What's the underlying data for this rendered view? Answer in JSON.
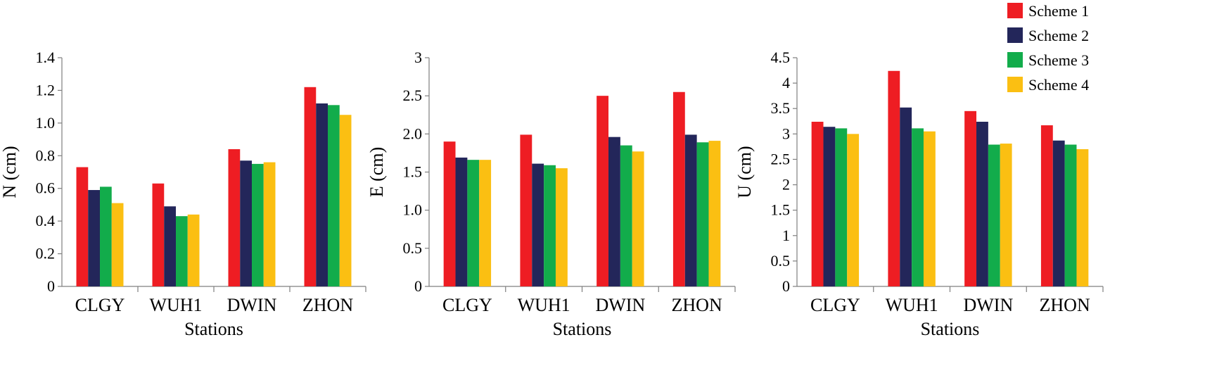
{
  "legend": {
    "items": [
      {
        "label": "Scheme 1",
        "color": "#ee1d23"
      },
      {
        "label": "Scheme 2",
        "color": "#23265a"
      },
      {
        "label": "Scheme 3",
        "color": "#12ac4b"
      },
      {
        "label": "Scheme 4",
        "color": "#fbbf12"
      }
    ],
    "placement": "top-right"
  },
  "chart_data": [
    {
      "type": "bar",
      "categories": [
        "CLGY",
        "WUH1",
        "DWIN",
        "ZHON"
      ],
      "xlabel": "Stations",
      "ylabel": "N (cm)",
      "ylim": [
        0,
        1.4
      ],
      "yticks": [
        "0",
        "0.2",
        "0.4",
        "0.6",
        "0.8",
        "1.0",
        "1.2",
        "1.4"
      ],
      "grid": false,
      "series": [
        {
          "name": "Scheme 1",
          "values": [
            0.73,
            0.63,
            0.84,
            1.22
          ]
        },
        {
          "name": "Scheme 2",
          "values": [
            0.59,
            0.49,
            0.77,
            1.12
          ]
        },
        {
          "name": "Scheme 3",
          "values": [
            0.61,
            0.43,
            0.75,
            1.11
          ]
        },
        {
          "name": "Scheme 4",
          "values": [
            0.51,
            0.44,
            0.76,
            1.05
          ]
        }
      ]
    },
    {
      "type": "bar",
      "categories": [
        "CLGY",
        "WUH1",
        "DWIN",
        "ZHON"
      ],
      "xlabel": "Stations",
      "ylabel": "E (cm)",
      "ylim": [
        0,
        3
      ],
      "yticks": [
        "0",
        "0.5",
        "1.0",
        "1.5",
        "2.0",
        "2.5",
        "3"
      ],
      "grid": false,
      "series": [
        {
          "name": "Scheme 1",
          "values": [
            1.9,
            1.99,
            2.5,
            2.55
          ]
        },
        {
          "name": "Scheme 2",
          "values": [
            1.69,
            1.61,
            1.96,
            1.99
          ]
        },
        {
          "name": "Scheme 3",
          "values": [
            1.66,
            1.59,
            1.85,
            1.89
          ]
        },
        {
          "name": "Scheme 4",
          "values": [
            1.66,
            1.55,
            1.77,
            1.91
          ]
        }
      ]
    },
    {
      "type": "bar",
      "categories": [
        "CLGY",
        "WUH1",
        "DWIN",
        "ZHON"
      ],
      "xlabel": "Stations",
      "ylabel": "U (cm)",
      "ylim": [
        0,
        4.5
      ],
      "yticks": [
        "0",
        "0.5",
        "1",
        "1.5",
        "2",
        "2.5",
        "3",
        "3.5",
        "4",
        "4.5"
      ],
      "grid": false,
      "series": [
        {
          "name": "Scheme 1",
          "values": [
            3.24,
            4.24,
            3.45,
            3.17
          ]
        },
        {
          "name": "Scheme 2",
          "values": [
            3.14,
            3.52,
            3.24,
            2.87
          ]
        },
        {
          "name": "Scheme 3",
          "values": [
            3.11,
            3.11,
            2.79,
            2.79
          ]
        },
        {
          "name": "Scheme 4",
          "values": [
            3.0,
            3.05,
            2.81,
            2.7
          ]
        }
      ]
    }
  ]
}
